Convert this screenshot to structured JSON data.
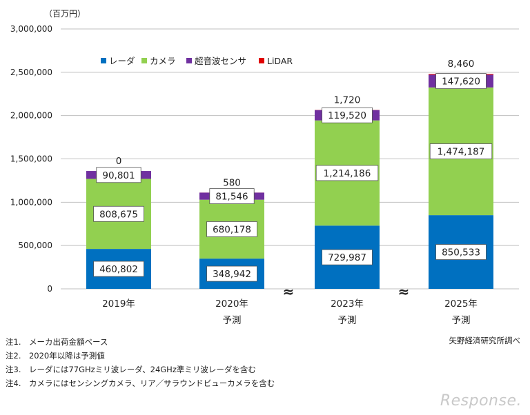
{
  "chart_data": {
    "type": "bar",
    "stacked": true,
    "unit": "（百万円）",
    "ylim": [
      0,
      3000000
    ],
    "yticks": [
      "0",
      "500,000",
      "1,000,000",
      "1,500,000",
      "2,000,000",
      "2,500,000",
      "3,000,000"
    ],
    "categories": [
      {
        "year": "2019年",
        "sub": ""
      },
      {
        "year": "2020年",
        "sub": "予測"
      },
      {
        "year": "2023年",
        "sub": "予測"
      },
      {
        "year": "2025年",
        "sub": "予測"
      }
    ],
    "series": [
      {
        "name": "レーダ",
        "color": "#0070C0",
        "values": [
          460802,
          348942,
          729987,
          850533
        ],
        "labels": [
          "460,802",
          "348,942",
          "729,987",
          "850,533"
        ]
      },
      {
        "name": "カメラ",
        "color": "#92D050",
        "values": [
          808675,
          680178,
          1214186,
          1474187
        ],
        "labels": [
          "808,675",
          "680,178",
          "1,214,186",
          "1,474,187"
        ]
      },
      {
        "name": "超音波センサ",
        "color": "#7030A0",
        "values": [
          90801,
          81546,
          119520,
          147620
        ],
        "labels": [
          "90,801",
          "81,546",
          "119,520",
          "147,620"
        ]
      },
      {
        "name": "LiDAR",
        "color": "#E00000",
        "values": [
          0,
          580,
          1720,
          8460
        ],
        "labels": [
          "0",
          "580",
          "1,720",
          "8,460"
        ]
      }
    ],
    "break_marks": [
      "≈",
      "≈"
    ]
  },
  "notes": [
    "注1.　メーカ出荷金額ベース",
    "注2.　2020年以降は予測値",
    "注3.　レーダには77GHzミリ波レーダ、24GHz準ミリ波レーダを含む",
    "注4.　カメラにはセンシングカメラ、リア／サラウンドビューカメラを含む"
  ],
  "source": "矢野経済研究所調べ",
  "logo": "Response."
}
